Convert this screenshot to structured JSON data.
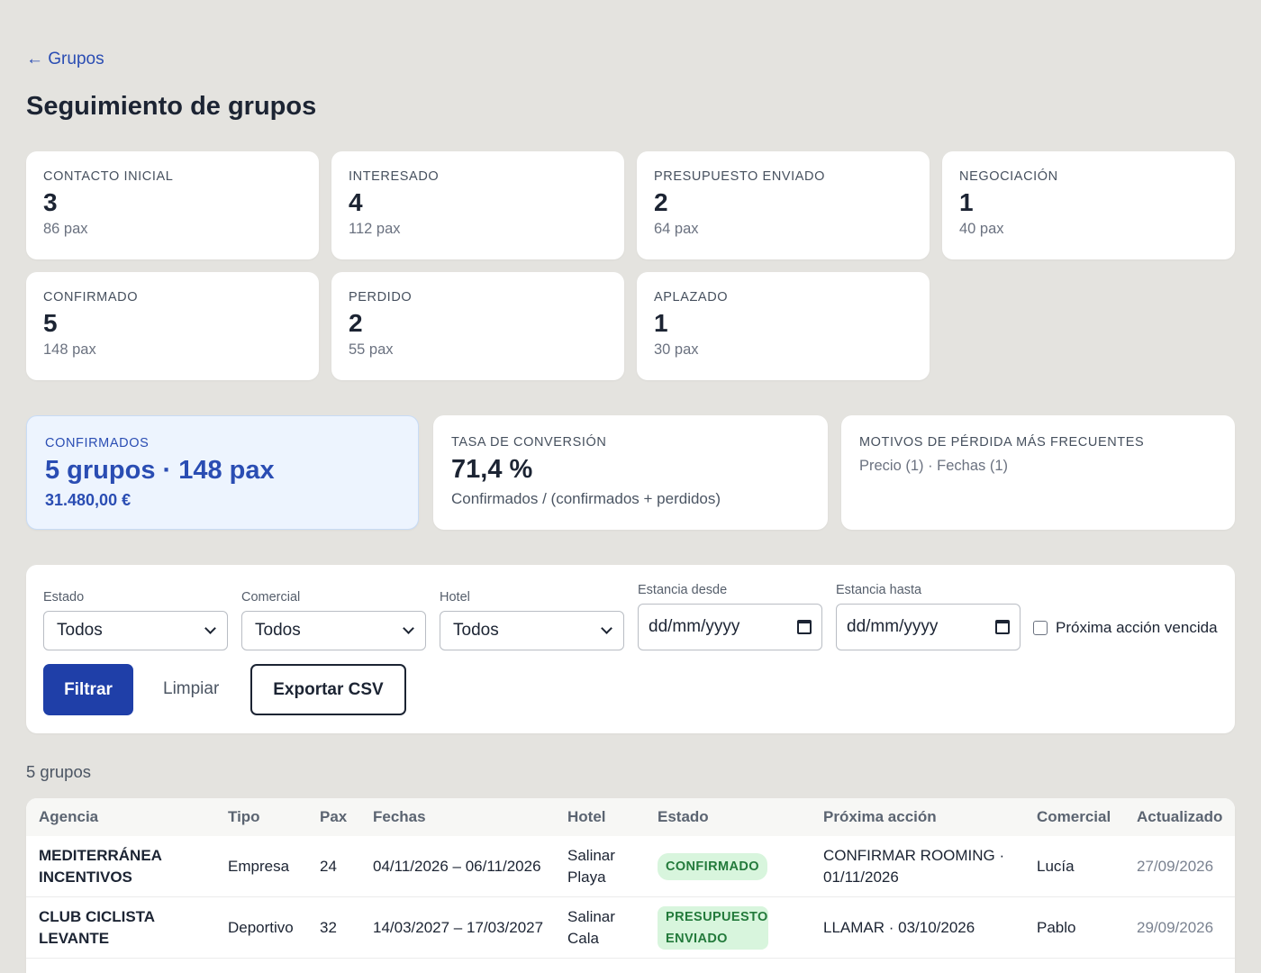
{
  "nav": {
    "back_label": "← Grupos"
  },
  "page": {
    "title": "Seguimiento de grupos"
  },
  "stages": [
    {
      "name": "CONTACTO INICIAL",
      "count": "3",
      "pax": "86 pax"
    },
    {
      "name": "INTERESADO",
      "count": "4",
      "pax": "112 pax"
    },
    {
      "name": "PRESUPUESTO ENVIADO",
      "count": "2",
      "pax": "64 pax"
    },
    {
      "name": "NEGOCIACIÓN",
      "count": "1",
      "pax": "40 pax"
    },
    {
      "name": "CONFIRMADO",
      "count": "5",
      "pax": "148 pax"
    },
    {
      "name": "PERDIDO",
      "count": "2",
      "pax": "55 pax"
    },
    {
      "name": "APLAZADO",
      "count": "1",
      "pax": "30 pax"
    }
  ],
  "summary": {
    "confirmed": {
      "label": "CONFIRMADOS",
      "headline": "5 grupos · 148 pax",
      "amount": "31.480,00 €"
    },
    "conversion": {
      "label": "TASA DE CONVERSIÓN",
      "rate": "71,4 %",
      "formula": "Confirmados / (confirmados + perdidos)"
    },
    "loss_reasons": {
      "label": "MOTIVOS DE PÉRDIDA MÁS FRECUENTES",
      "text": "Precio (1) · Fechas (1)"
    }
  },
  "filters": {
    "estado": {
      "label": "Estado",
      "value": "Todos"
    },
    "comercial": {
      "label": "Comercial",
      "value": "Todos"
    },
    "hotel": {
      "label": "Hotel",
      "value": "Todos"
    },
    "desde": {
      "label": "Estancia desde",
      "placeholder": "dd/mm/yyyy"
    },
    "hasta": {
      "label": "Estancia hasta",
      "placeholder": "dd/mm/yyyy"
    },
    "overdue_label": "Próxima acción vencida",
    "filter_button": "Filtrar",
    "clear_button": "Limpiar",
    "export_button": "Exportar CSV"
  },
  "results": {
    "count_label": "5 grupos"
  },
  "table": {
    "headers": [
      "Agencia",
      "Tipo",
      "Pax",
      "Fechas",
      "Hotel",
      "Estado",
      "Próxima acción",
      "Comercial",
      "Actualizado"
    ],
    "rows": [
      {
        "agency": "MEDITERRÁNEA INCENTIVOS",
        "type": "Empresa",
        "pax": "24",
        "dates": "04/11/2026 – 06/11/2026",
        "hotel": "Salinar Playa",
        "status": "CONFIRMADO",
        "next_action": "CONFIRMAR ROOMING · 01/11/2026",
        "sales": "Lucía",
        "updated": "27/09/2026"
      },
      {
        "agency": "CLUB CICLISTA LEVANTE",
        "type": "Deportivo",
        "pax": "32",
        "dates": "14/03/2027 – 17/03/2027",
        "hotel": "Salinar Cala",
        "status": "PRESUPUESTO ENVIADO",
        "next_action": "LLAMAR · 03/10/2026",
        "sales": "Pablo",
        "updated": "29/09/2026"
      }
    ]
  },
  "colors": {
    "accent": "#2a4db3",
    "primary_button": "#1f3fa8",
    "badge_bg": "#d8f5dd",
    "badge_text": "#237a3b"
  }
}
